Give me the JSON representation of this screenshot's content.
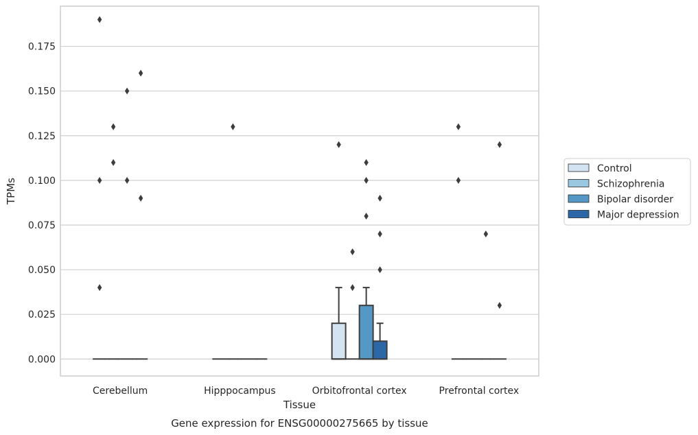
{
  "caption": "Gene expression for ENSG00000275665 by tissue",
  "colors": {
    "Control": "#d3e3f2",
    "Schizophrenia": "#9ac8e0",
    "Bipolar disorder": "#5598c6",
    "Major depression": "#2c68a8",
    "edge": "#3d3d3d",
    "grid": "#cfcfcf",
    "frame": "#cccccc"
  },
  "chart_data": {
    "type": "box",
    "title": "",
    "xlabel": "Tissue",
    "ylabel": "TPMs",
    "ylim": [
      -0.0095,
      0.1975
    ],
    "yticks": [
      0.0,
      0.025,
      0.05,
      0.075,
      0.1,
      0.125,
      0.15,
      0.175
    ],
    "ytick_labels": [
      "0.000",
      "0.025",
      "0.050",
      "0.075",
      "0.100",
      "0.125",
      "0.150",
      "0.175"
    ],
    "grid": "horizontal",
    "legend_position": "right",
    "categories": [
      "Cerebellum",
      "Hipppocampus",
      "Orbitofrontal cortex",
      "Prefrontal cortex"
    ],
    "series": [
      {
        "name": "Control",
        "boxes": [
          {
            "q1": 0,
            "median": 0,
            "q3": 0,
            "whisker_low": 0,
            "whisker_high": 0,
            "outliers": [
              0.19,
              0.1,
              0.04
            ]
          },
          {
            "q1": 0,
            "median": 0,
            "q3": 0,
            "whisker_low": 0,
            "whisker_high": 0,
            "outliers": []
          },
          {
            "q1": 0,
            "median": 0,
            "q3": 0.02,
            "whisker_low": 0,
            "whisker_high": 0.04,
            "outliers": [
              0.12
            ]
          },
          {
            "q1": 0,
            "median": 0,
            "q3": 0,
            "whisker_low": 0,
            "whisker_high": 0,
            "outliers": [
              0.13,
              0.1
            ]
          }
        ]
      },
      {
        "name": "Schizophrenia",
        "boxes": [
          {
            "q1": 0,
            "median": 0,
            "q3": 0,
            "whisker_low": 0,
            "whisker_high": 0,
            "outliers": [
              0.13,
              0.11
            ]
          },
          {
            "q1": 0,
            "median": 0,
            "q3": 0,
            "whisker_low": 0,
            "whisker_high": 0,
            "outliers": [
              0.13
            ]
          },
          {
            "q1": 0,
            "median": 0,
            "q3": 0,
            "whisker_low": 0,
            "whisker_high": 0,
            "outliers": [
              0.06,
              0.04
            ]
          },
          {
            "q1": 0,
            "median": 0,
            "q3": 0,
            "whisker_low": 0,
            "whisker_high": 0,
            "outliers": []
          }
        ]
      },
      {
        "name": "Bipolar disorder",
        "boxes": [
          {
            "q1": 0,
            "median": 0,
            "q3": 0,
            "whisker_low": 0,
            "whisker_high": 0,
            "outliers": [
              0.15,
              0.1
            ]
          },
          {
            "q1": 0,
            "median": 0,
            "q3": 0,
            "whisker_low": 0,
            "whisker_high": 0,
            "outliers": []
          },
          {
            "q1": 0,
            "median": 0,
            "q3": 0.03,
            "whisker_low": 0,
            "whisker_high": 0.04,
            "outliers": [
              0.11,
              0.1,
              0.08
            ]
          },
          {
            "q1": 0,
            "median": 0,
            "q3": 0,
            "whisker_low": 0,
            "whisker_high": 0,
            "outliers": [
              0.07
            ]
          }
        ]
      },
      {
        "name": "Major depression",
        "boxes": [
          {
            "q1": 0,
            "median": 0,
            "q3": 0,
            "whisker_low": 0,
            "whisker_high": 0,
            "outliers": [
              0.16,
              0.09
            ]
          },
          {
            "q1": 0,
            "median": 0,
            "q3": 0,
            "whisker_low": 0,
            "whisker_high": 0,
            "outliers": []
          },
          {
            "q1": 0,
            "median": 0,
            "q3": 0.01,
            "whisker_low": 0,
            "whisker_high": 0.02,
            "outliers": [
              0.09,
              0.07,
              0.05
            ]
          },
          {
            "q1": 0,
            "median": 0,
            "q3": 0,
            "whisker_low": 0,
            "whisker_high": 0,
            "outliers": [
              0.12,
              0.03
            ]
          }
        ]
      }
    ]
  }
}
